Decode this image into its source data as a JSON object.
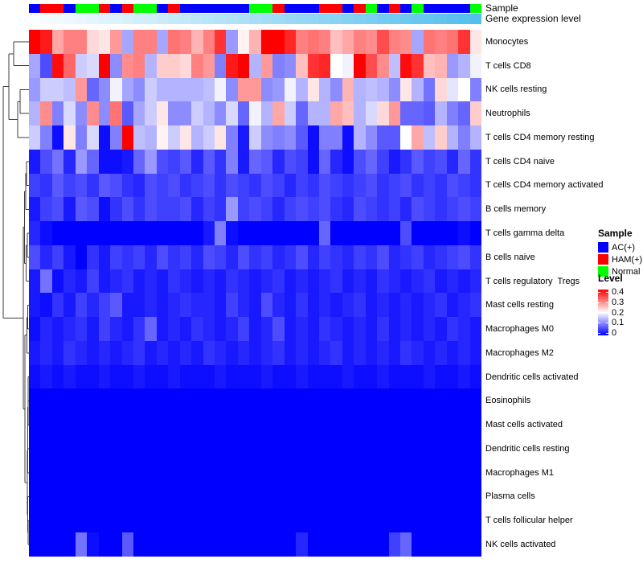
{
  "annotations": {
    "sample_label": "Sample",
    "gene_label": "Gene expression level",
    "sample_colors": {
      "AC(+)": "#0000ff",
      "HAM(+)": "#ff0000",
      "Normal": "#00ff00"
    },
    "sample_sequence": [
      "AC(+)",
      "HAM(+)",
      "HAM(+)",
      "AC(+)",
      "Normal",
      "Normal",
      "HAM(+)",
      "AC(+)",
      "HAM(+)",
      "Normal",
      "Normal",
      "AC(+)",
      "HAM(+)",
      "AC(+)",
      "AC(+)",
      "AC(+)",
      "AC(+)",
      "AC(+)",
      "AC(+)",
      "Normal",
      "Normal",
      "HAM(+)",
      "AC(+)",
      "AC(+)",
      "AC(+)",
      "HAM(+)",
      "HAM(+)",
      "AC(+)",
      "HAM(+)",
      "Normal",
      "AC(+)",
      "HAM(+)",
      "AC(+)",
      "Normal",
      "AC(+)",
      "AC(+)",
      "AC(+)",
      "AC(+)",
      "Normal"
    ],
    "gene_gradient": {
      "start": "#fbfdff",
      "end": "#53bfec"
    }
  },
  "legend": {
    "sample": {
      "title": "Sample",
      "items": [
        {
          "label": "AC(+)",
          "color": "#0000ff"
        },
        {
          "label": "HAM(+)",
          "color": "#ff0000"
        },
        {
          "label": "Normal",
          "color": "#00ff00"
        }
      ]
    },
    "level": {
      "title": "Level",
      "ticks": [
        "0.4",
        "0.3",
        "0.2",
        "0.1",
        "0"
      ],
      "tick_values": [
        0.4,
        0.3,
        0.2,
        0.1,
        0
      ]
    }
  },
  "chart_data": {
    "type": "heatmap",
    "title": "",
    "rows": [
      "Monocytes",
      "T cells CD8",
      "NK cells resting",
      "Neutrophils",
      "T cells CD4 memory resting",
      "T cells CD4 naive",
      "T cells CD4 memory activated",
      "B cells memory",
      "T cells gamma delta",
      "B cells naive",
      "T cells regulatory  Tregs",
      "Mast cells resting",
      "Macrophages M0",
      "Macrophages M2",
      "Dendritic cells activated",
      "Eosinophils",
      "Mast cells activated",
      "Dendritic cells resting",
      "Macrophages M1",
      "Plasma cells",
      "T cells follicular helper",
      "NK cells activated"
    ],
    "columns_count": 39,
    "value_range": [
      0,
      0.4
    ],
    "colormap": {
      "low": "#0000ff",
      "mid": "#ffffff",
      "high": "#ff0000",
      "mid_at": 0.2
    },
    "legend_position": "right",
    "matrix": [
      [
        0.4,
        0.38,
        0.27,
        0.3,
        0.3,
        0.23,
        0.22,
        0.28,
        0.13,
        0.3,
        0.3,
        0.13,
        0.31,
        0.3,
        0.26,
        0.3,
        0.36,
        0.12,
        0.21,
        0.26,
        0.4,
        0.4,
        0.37,
        0.3,
        0.31,
        0.3,
        0.25,
        0.27,
        0.3,
        0.29,
        0.34,
        0.3,
        0.29,
        0.13,
        0.31,
        0.3,
        0.31,
        0.36,
        0.22
      ],
      [
        0.13,
        0.06,
        0.39,
        0.32,
        0.16,
        0.17,
        0.4,
        0.11,
        0.29,
        0.3,
        0.14,
        0.24,
        0.24,
        0.23,
        0.3,
        0.28,
        0.1,
        0.38,
        0.4,
        0.14,
        0.28,
        0.1,
        0.11,
        0.25,
        0.36,
        0.37,
        0.2,
        0.19,
        0.4,
        0.34,
        0.29,
        0.15,
        0.39,
        0.36,
        0.25,
        0.26,
        0.12,
        0.14,
        0.19
      ],
      [
        0.12,
        0.16,
        0.16,
        0.15,
        0.28,
        0.08,
        0.11,
        0.19,
        0.13,
        0.11,
        0.16,
        0.14,
        0.14,
        0.14,
        0.14,
        0.15,
        0.19,
        0.11,
        0.28,
        0.28,
        0.11,
        0.12,
        0.19,
        0.14,
        0.22,
        0.14,
        0.11,
        0.26,
        0.14,
        0.15,
        0.14,
        0.11,
        0.22,
        0.14,
        0.09,
        0.23,
        0.18,
        0.2,
        0.1
      ],
      [
        0.14,
        0.29,
        0.1,
        0.17,
        0.11,
        0.29,
        0.11,
        0.31,
        0.07,
        0.13,
        0.16,
        0.22,
        0.11,
        0.11,
        0.16,
        0.14,
        0.11,
        0.17,
        0.08,
        0.19,
        0.14,
        0.27,
        0.16,
        0.08,
        0.14,
        0.14,
        0.27,
        0.25,
        0.14,
        0.17,
        0.23,
        0.28,
        0.08,
        0.08,
        0.07,
        0.14,
        0.1,
        0.08,
        0.24
      ],
      [
        0.16,
        0.1,
        0.01,
        0.22,
        0.1,
        0.17,
        0.01,
        0.1,
        0.4,
        0.15,
        0.14,
        0.21,
        0.16,
        0.22,
        0.14,
        0.16,
        0.22,
        0.1,
        0.02,
        0.16,
        0.11,
        0.1,
        0.11,
        0.07,
        0.01,
        0.1,
        0.1,
        0.01,
        0.14,
        0.11,
        0.07,
        0.07,
        0.2,
        0.27,
        0.15,
        0.24,
        0.14,
        0.1,
        0.14
      ],
      [
        0.02,
        0.06,
        0.09,
        0.03,
        0.12,
        0.08,
        0.01,
        0.01,
        0.02,
        0.08,
        0.12,
        0.06,
        0.05,
        0.07,
        0.03,
        0.07,
        0.04,
        0.1,
        0.02,
        0.08,
        0.07,
        0.03,
        0.06,
        0.05,
        0.01,
        0.08,
        0.03,
        0.01,
        0.06,
        0.08,
        0.05,
        0.02,
        0.04,
        0.07,
        0.05,
        0.06,
        0.03,
        0.08,
        0.04
      ],
      [
        0.05,
        0.04,
        0.07,
        0.05,
        0.06,
        0.04,
        0.07,
        0.06,
        0.04,
        0.03,
        0.06,
        0.05,
        0.06,
        0.04,
        0.05,
        0.06,
        0.04,
        0.06,
        0.05,
        0.04,
        0.06,
        0.05,
        0.03,
        0.05,
        0.04,
        0.06,
        0.05,
        0.04,
        0.05,
        0.06,
        0.04,
        0.05,
        0.06,
        0.04,
        0.05,
        0.04,
        0.06,
        0.05,
        0.04
      ],
      [
        0.02,
        0.05,
        0.06,
        0.02,
        0.07,
        0.06,
        0.01,
        0.04,
        0.06,
        0.04,
        0.06,
        0.05,
        0.05,
        0.06,
        0.03,
        0.05,
        0.04,
        0.12,
        0.05,
        0.06,
        0.05,
        0.03,
        0.05,
        0.06,
        0.05,
        0.06,
        0.04,
        0.03,
        0.06,
        0.05,
        0.04,
        0.05,
        0.03,
        0.06,
        0.05,
        0.04,
        0.05,
        0.06,
        0.05
      ],
      [
        0.03,
        0.01,
        0.0,
        0.0,
        0.0,
        0.0,
        0.0,
        0.0,
        0.0,
        0.0,
        0.0,
        0.0,
        0.0,
        0.0,
        0.0,
        0.02,
        0.1,
        0.01,
        0.0,
        0.0,
        0.0,
        0.0,
        0.0,
        0.0,
        0.0,
        0.08,
        0.0,
        0.0,
        0.0,
        0.0,
        0.0,
        0.0,
        0.06,
        0.0,
        0.0,
        0.0,
        0.0,
        0.01,
        0.0
      ],
      [
        0.06,
        0.03,
        0.05,
        0.02,
        0.0,
        0.04,
        0.02,
        0.05,
        0.04,
        0.05,
        0.03,
        0.06,
        0.04,
        0.05,
        0.03,
        0.06,
        0.05,
        0.03,
        0.06,
        0.04,
        0.05,
        0.03,
        0.04,
        0.06,
        0.03,
        0.05,
        0.04,
        0.03,
        0.05,
        0.04,
        0.06,
        0.03,
        0.04,
        0.05,
        0.03,
        0.04,
        0.05,
        0.06,
        0.04
      ],
      [
        0.02,
        0.09,
        0.01,
        0.03,
        0.02,
        0.05,
        0.02,
        0.03,
        0.04,
        0.02,
        0.03,
        0.02,
        0.04,
        0.03,
        0.02,
        0.03,
        0.02,
        0.04,
        0.03,
        0.02,
        0.03,
        0.04,
        0.02,
        0.03,
        0.02,
        0.03,
        0.04,
        0.02,
        0.03,
        0.02,
        0.04,
        0.03,
        0.02,
        0.03,
        0.04,
        0.02,
        0.03,
        0.02,
        0.03
      ],
      [
        0.02,
        0.01,
        0.04,
        0.02,
        0.05,
        0.03,
        0.05,
        0.07,
        0.02,
        0.02,
        0.03,
        0.02,
        0.03,
        0.04,
        0.03,
        0.03,
        0.02,
        0.05,
        0.03,
        0.02,
        0.06,
        0.03,
        0.02,
        0.04,
        0.02,
        0.03,
        0.02,
        0.03,
        0.04,
        0.02,
        0.03,
        0.02,
        0.03,
        0.02,
        0.03,
        0.04,
        0.02,
        0.03,
        0.04
      ],
      [
        0.01,
        0.03,
        0.02,
        0.03,
        0.04,
        0.02,
        0.05,
        0.03,
        0.02,
        0.04,
        0.08,
        0.02,
        0.03,
        0.02,
        0.04,
        0.03,
        0.02,
        0.03,
        0.05,
        0.02,
        0.03,
        0.06,
        0.02,
        0.03,
        0.02,
        0.04,
        0.03,
        0.02,
        0.03,
        0.02,
        0.04,
        0.02,
        0.03,
        0.02,
        0.03,
        0.02,
        0.04,
        0.03,
        0.02
      ],
      [
        0.02,
        0.03,
        0.02,
        0.04,
        0.03,
        0.02,
        0.03,
        0.02,
        0.03,
        0.04,
        0.02,
        0.03,
        0.02,
        0.03,
        0.02,
        0.04,
        0.03,
        0.02,
        0.03,
        0.02,
        0.03,
        0.04,
        0.02,
        0.03,
        0.02,
        0.03,
        0.04,
        0.02,
        0.03,
        0.02,
        0.03,
        0.02,
        0.04,
        0.03,
        0.02,
        0.03,
        0.02,
        0.03,
        0.02
      ],
      [
        0.01,
        0.02,
        0.01,
        0.02,
        0.01,
        0.01,
        0.02,
        0.01,
        0.01,
        0.02,
        0.01,
        0.01,
        0.02,
        0.01,
        0.01,
        0.01,
        0.02,
        0.01,
        0.01,
        0.01,
        0.02,
        0.01,
        0.01,
        0.02,
        0.01,
        0.01,
        0.01,
        0.02,
        0.01,
        0.01,
        0.02,
        0.01,
        0.01,
        0.01,
        0.02,
        0.01,
        0.01,
        0.02,
        0.01
      ],
      [
        0,
        0,
        0,
        0,
        0,
        0,
        0,
        0,
        0,
        0,
        0,
        0,
        0,
        0,
        0,
        0,
        0,
        0,
        0,
        0,
        0,
        0,
        0,
        0,
        0,
        0,
        0,
        0,
        0,
        0,
        0,
        0,
        0,
        0,
        0,
        0,
        0,
        0,
        0
      ],
      [
        0,
        0,
        0,
        0,
        0,
        0,
        0,
        0,
        0,
        0,
        0,
        0,
        0,
        0,
        0,
        0,
        0,
        0,
        0,
        0,
        0,
        0,
        0,
        0,
        0,
        0,
        0,
        0,
        0,
        0,
        0,
        0,
        0,
        0,
        0,
        0,
        0,
        0,
        0
      ],
      [
        0,
        0,
        0,
        0,
        0,
        0,
        0,
        0,
        0,
        0,
        0,
        0,
        0,
        0,
        0,
        0,
        0,
        0,
        0,
        0,
        0,
        0,
        0,
        0,
        0,
        0,
        0,
        0,
        0,
        0,
        0,
        0,
        0,
        0,
        0,
        0,
        0,
        0,
        0
      ],
      [
        0,
        0,
        0,
        0,
        0,
        0,
        0,
        0,
        0,
        0,
        0,
        0,
        0,
        0,
        0,
        0,
        0,
        0,
        0,
        0,
        0,
        0,
        0,
        0,
        0,
        0,
        0,
        0,
        0,
        0,
        0,
        0,
        0,
        0,
        0,
        0,
        0,
        0,
        0
      ],
      [
        0,
        0,
        0,
        0,
        0,
        0,
        0,
        0,
        0,
        0,
        0,
        0,
        0,
        0,
        0,
        0,
        0,
        0,
        0,
        0,
        0,
        0,
        0,
        0,
        0,
        0,
        0,
        0,
        0,
        0,
        0,
        0,
        0,
        0,
        0,
        0,
        0,
        0,
        0
      ],
      [
        0,
        0,
        0,
        0,
        0,
        0,
        0,
        0,
        0,
        0,
        0,
        0,
        0,
        0,
        0,
        0,
        0,
        0,
        0,
        0,
        0,
        0,
        0,
        0,
        0,
        0,
        0,
        0,
        0,
        0,
        0,
        0,
        0,
        0,
        0,
        0,
        0,
        0,
        0
      ],
      [
        0,
        0,
        0,
        0,
        0.09,
        0.01,
        0,
        0,
        0.07,
        0,
        0,
        0,
        0,
        0,
        0,
        0,
        0,
        0,
        0,
        0,
        0,
        0,
        0,
        0.03,
        0,
        0,
        0,
        0,
        0,
        0,
        0,
        0.05,
        0.08,
        0,
        0,
        0,
        0,
        0,
        0
      ]
    ]
  }
}
